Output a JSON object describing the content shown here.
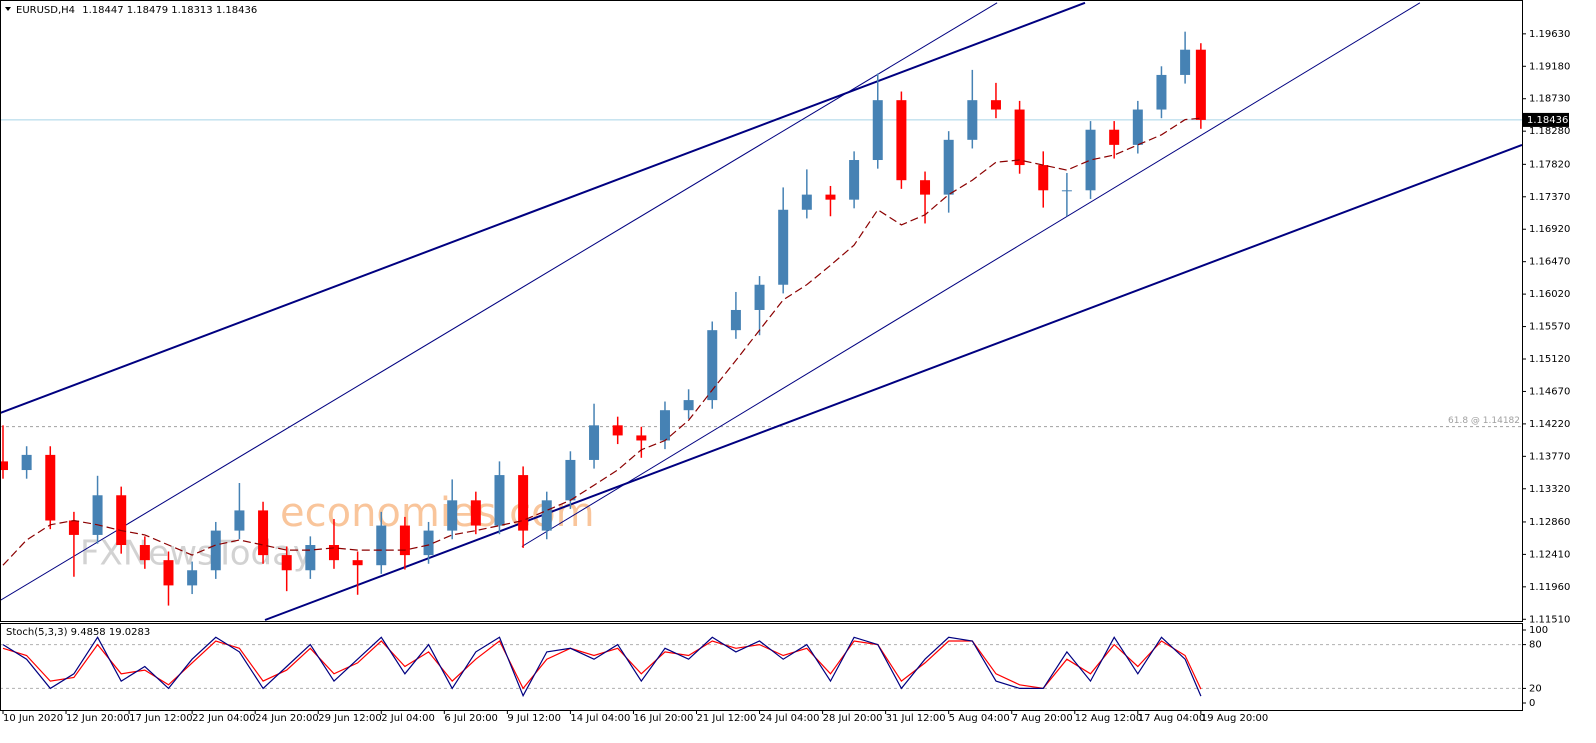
{
  "chart_data": {
    "type": "candlestick",
    "symbol": "EURUSD,H4",
    "quote": [
      1.18447,
      1.18479,
      1.18313,
      1.18436
    ],
    "watermark": [
      "economies.com",
      "FXNewsToday"
    ],
    "up_color": "#4682b4",
    "down_color": "#ff0000",
    "xlim": [
      -0.76,
      385.5
    ],
    "xticks": [
      {
        "value": 0,
        "label": "10 Jun 2020"
      },
      {
        "value": 16,
        "label": "12 Jun 20:00"
      },
      {
        "value": 32,
        "label": "17 Jun 12:00"
      },
      {
        "value": 48,
        "label": "22 Jun 04:00"
      },
      {
        "value": 64,
        "label": "24 Jun 20:00"
      },
      {
        "value": 80,
        "label": "29 Jun 12:00"
      },
      {
        "value": 96,
        "label": "2 Jul 04:00"
      },
      {
        "value": 112,
        "label": "6 Jul 20:00"
      },
      {
        "value": 128,
        "label": "9 Jul 12:00"
      },
      {
        "value": 144,
        "label": "14 Jul 04:00"
      },
      {
        "value": 160,
        "label": "16 Jul 20:00"
      },
      {
        "value": 176,
        "label": "21 Jul 12:00"
      },
      {
        "value": 192,
        "label": "24 Jul 04:00"
      },
      {
        "value": 208,
        "label": "28 Jul 20:00"
      },
      {
        "value": 224,
        "label": "31 Jul 12:00"
      },
      {
        "value": 240,
        "label": "5 Aug 04:00"
      },
      {
        "value": 256,
        "label": "7 Aug 20:00"
      },
      {
        "value": 272,
        "label": "12 Aug 12:00"
      },
      {
        "value": 288,
        "label": "17 Aug 04:00"
      },
      {
        "value": 304,
        "label": "19 Aug 20:00"
      }
    ],
    "ylim": [
      1.115,
      1.2003
    ],
    "yticks": [
      {
        "value": 1.1963,
        "label": "1.19630"
      },
      {
        "value": 1.1918,
        "label": "1.19180"
      },
      {
        "value": 1.1873,
        "label": "1.18730"
      },
      {
        "value": 1.1828,
        "label": "1.18280"
      },
      {
        "value": 1.1782,
        "label": "1.17820"
      },
      {
        "value": 1.1737,
        "label": "1.17370"
      },
      {
        "value": 1.1692,
        "label": "1.16920"
      },
      {
        "value": 1.1647,
        "label": "1.16470"
      },
      {
        "value": 1.1602,
        "label": "1.16020"
      },
      {
        "value": 1.1557,
        "label": "1.15570"
      },
      {
        "value": 1.1512,
        "label": "1.15120"
      },
      {
        "value": 1.1467,
        "label": "1.14670"
      },
      {
        "value": 1.1422,
        "label": "1.14220"
      },
      {
        "value": 1.1377,
        "label": "1.13770"
      },
      {
        "value": 1.1332,
        "label": "1.13320"
      },
      {
        "value": 1.1286,
        "label": "1.12860"
      },
      {
        "value": 1.1241,
        "label": "1.12410"
      },
      {
        "value": 1.1196,
        "label": "1.11960"
      },
      {
        "value": 1.1151,
        "label": "1.11510"
      }
    ],
    "current_price": 1.18436,
    "fib_level": {
      "value": 1.14182,
      "label": "61.8 @ 1.14182"
    },
    "x": [
      0,
      6,
      12,
      18,
      24,
      30,
      36,
      42,
      48,
      54,
      60,
      66,
      72,
      78,
      84,
      90,
      96,
      102,
      108,
      114,
      120,
      126,
      132,
      138,
      144,
      150,
      156,
      162,
      168,
      174,
      180,
      186,
      192,
      198,
      204,
      210,
      216,
      222,
      228,
      234,
      240,
      246,
      252,
      258,
      264,
      270,
      276,
      282,
      288,
      294,
      300,
      304
    ],
    "open": [
      1.137,
      1.1358,
      1.1379,
      1.1288,
      1.1268,
      1.1323,
      1.1254,
      1.1233,
      1.1198,
      1.1219,
      1.1274,
      1.1302,
      1.124,
      1.1219,
      1.1254,
      1.1233,
      1.1226,
      1.1281,
      1.124,
      1.1274,
      1.1316,
      1.1281,
      1.1351,
      1.1274,
      1.1316,
      1.1372,
      1.142,
      1.1406,
      1.1399,
      1.1441,
      1.1455,
      1.1552,
      1.158,
      1.1615,
      1.1719,
      1.174,
      1.1733,
      1.1788,
      1.1871,
      1.176,
      1.174,
      1.1816,
      1.1871,
      1.1858,
      1.1781,
      1.1746,
      1.1746,
      1.183,
      1.1809,
      1.1858,
      1.1906,
      1.1941
    ],
    "high": [
      1.142,
      1.1391,
      1.1391,
      1.13,
      1.135,
      1.1335,
      1.1266,
      1.1245,
      1.1231,
      1.1286,
      1.134,
      1.1314,
      1.1252,
      1.1266,
      1.129,
      1.1245,
      1.13,
      1.1293,
      1.1286,
      1.1345,
      1.1328,
      1.137,
      1.1363,
      1.1328,
      1.1384,
      1.145,
      1.1432,
      1.1418,
      1.1453,
      1.147,
      1.1564,
      1.1605,
      1.1627,
      1.175,
      1.1775,
      1.1752,
      1.18,
      1.1908,
      1.1883,
      1.1772,
      1.1828,
      1.1913,
      1.1895,
      1.187,
      1.18,
      1.177,
      1.1842,
      1.1842,
      1.187,
      1.1918,
      1.1966,
      1.195
    ],
    "low": [
      1.1346,
      1.1346,
      1.1276,
      1.121,
      1.1256,
      1.1242,
      1.1221,
      1.117,
      1.1186,
      1.1207,
      1.1262,
      1.1228,
      1.119,
      1.1207,
      1.1221,
      1.1185,
      1.1214,
      1.122,
      1.1228,
      1.1262,
      1.1269,
      1.1269,
      1.125,
      1.1262,
      1.1304,
      1.136,
      1.1394,
      1.1375,
      1.1387,
      1.1429,
      1.1443,
      1.154,
      1.1545,
      1.1603,
      1.1707,
      1.171,
      1.1721,
      1.1776,
      1.1748,
      1.17,
      1.1715,
      1.1804,
      1.1846,
      1.1769,
      1.1722,
      1.171,
      1.1734,
      1.179,
      1.1797,
      1.1846,
      1.1894,
      1.18313
    ],
    "close": [
      1.1358,
      1.1379,
      1.1288,
      1.1268,
      1.1323,
      1.1254,
      1.1233,
      1.1198,
      1.1219,
      1.1274,
      1.1302,
      1.124,
      1.1219,
      1.1254,
      1.1233,
      1.1226,
      1.1281,
      1.124,
      1.1274,
      1.1316,
      1.1281,
      1.1351,
      1.1274,
      1.1316,
      1.1372,
      1.142,
      1.1406,
      1.1399,
      1.1441,
      1.1455,
      1.1552,
      1.158,
      1.1615,
      1.1719,
      1.174,
      1.1733,
      1.1788,
      1.1871,
      1.176,
      1.174,
      1.1816,
      1.1871,
      1.1858,
      1.1781,
      1.1746,
      1.1746,
      1.183,
      1.1809,
      1.1858,
      1.1906,
      1.1941,
      1.18436
    ],
    "moving_average": {
      "color": "#8b0000",
      "values": [
        1.1226,
        1.1261,
        1.1282,
        1.1288,
        1.1282,
        1.1274,
        1.1268,
        1.1254,
        1.124,
        1.1254,
        1.1261,
        1.1254,
        1.1247,
        1.1247,
        1.125,
        1.1247,
        1.1247,
        1.1247,
        1.1254,
        1.1268,
        1.1274,
        1.1281,
        1.1288,
        1.1302,
        1.1316,
        1.1337,
        1.1358,
        1.1386,
        1.1399,
        1.1427,
        1.1469,
        1.151,
        1.1552,
        1.1594,
        1.1615,
        1.1642,
        1.167,
        1.1719,
        1.1698,
        1.1712,
        1.174,
        1.176,
        1.1785,
        1.1788,
        1.1781,
        1.1774,
        1.1788,
        1.1795,
        1.1809,
        1.1823,
        1.1844,
        1.1846
      ]
    },
    "trendlines": [
      {
        "color": "#000080",
        "width": 2,
        "x": [
          -0.76,
          274.6
        ],
        "y": [
          1.1437,
          1.2006
        ]
      },
      {
        "color": "#000080",
        "width": 1,
        "x": [
          -0.76,
          252.3
        ],
        "y": [
          1.1177,
          1.2006
        ]
      },
      {
        "color": "#000080",
        "width": 1,
        "x": [
          131.7,
          359.6
        ],
        "y": [
          1.1252,
          1.2006
        ]
      },
      {
        "color": "#000080",
        "width": 2,
        "x": [
          66.5,
          385.5
        ],
        "y": [
          1.115,
          1.1809
        ]
      }
    ],
    "stoch": {
      "name": "Stoch(5,3,3)",
      "ylim": [
        0,
        100
      ],
      "yticks": [
        0,
        20,
        80,
        100
      ],
      "series": [
        {
          "color": "#000080",
          "values": [
            80,
            60,
            20,
            40,
            90,
            30,
            50,
            20,
            60,
            90,
            70,
            20,
            50,
            80,
            30,
            60,
            90,
            40,
            80,
            20,
            70,
            90,
            10,
            70,
            75,
            60,
            80,
            30,
            75,
            60,
            90,
            70,
            85,
            60,
            80,
            30,
            90,
            80,
            20,
            60,
            90,
            85,
            30,
            20,
            20,
            70,
            30,
            90,
            40,
            90,
            60,
            9.4858
          ]
        },
        {
          "color": "#ff0000",
          "values": [
            75,
            65,
            30,
            35,
            80,
            40,
            45,
            25,
            55,
            85,
            75,
            30,
            45,
            75,
            40,
            55,
            85,
            50,
            70,
            30,
            60,
            85,
            20,
            60,
            75,
            65,
            75,
            40,
            70,
            65,
            85,
            75,
            80,
            65,
            75,
            40,
            85,
            80,
            30,
            55,
            85,
            85,
            40,
            25,
            20,
            60,
            40,
            80,
            50,
            85,
            65,
            19.0283
          ]
        }
      ]
    }
  }
}
